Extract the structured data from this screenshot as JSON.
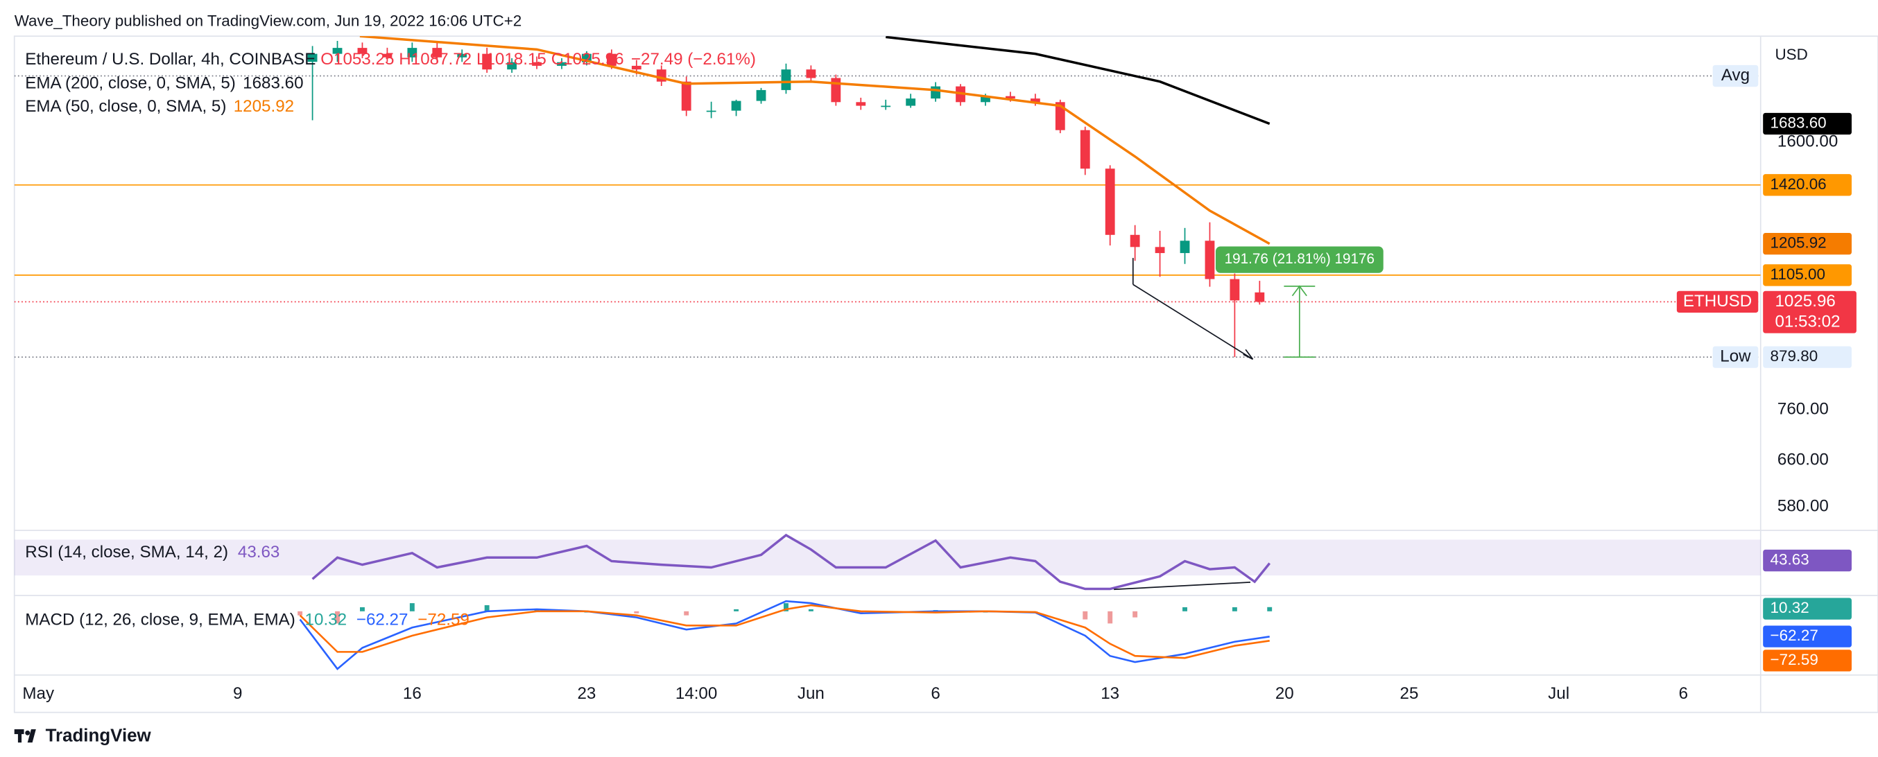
{
  "header": {
    "text": "Wave_Theory published on TradingView.com, Jun 19, 2022 16:06 UTC+2"
  },
  "chart_data": [
    {
      "type": "candlestick",
      "title": "Ethereum / U.S. Dollar, 4h, COINBASE",
      "ohlc_labels": [
        "O1053.25",
        "H1087.72",
        "L1018.15",
        "C1025.96"
      ],
      "change_label": "−27.49 (−2.61%)",
      "currency": "USD",
      "x": [
        11,
        12,
        13,
        14,
        15,
        16,
        17,
        18,
        19,
        20,
        21,
        22,
        23,
        24,
        25,
        26,
        27,
        28,
        29,
        30,
        31,
        32,
        33,
        34,
        35,
        36,
        37,
        38,
        39,
        40,
        41,
        42,
        43,
        44,
        45,
        46,
        47,
        48,
        49
      ],
      "open": [
        2000,
        2045,
        2079,
        2045,
        2025,
        2079,
        2025,
        2045,
        1958,
        1998,
        1978,
        1998,
        2045,
        1978,
        1958,
        1893,
        1746,
        1746,
        1794,
        1849,
        1958,
        1912,
        1788,
        1770,
        1770,
        1806,
        1868,
        1788,
        1818,
        1806,
        1788,
        1654,
        1486,
        1236,
        1195,
        1175,
        1216,
        1093,
        1053.25
      ],
      "high": [
        2090,
        2120,
        2110,
        2080,
        2110,
        2110,
        2070,
        2080,
        2020,
        2030,
        2020,
        2060,
        2070,
        2010,
        1980,
        1920,
        1790,
        1800,
        1860,
        1990,
        1980,
        1930,
        1810,
        1800,
        1830,
        1890,
        1880,
        1830,
        1840,
        1830,
        1800,
        1670,
        1500,
        1270,
        1250,
        1260,
        1280,
        1110,
        1087.72
      ],
      "low": [
        1700,
        2000,
        2020,
        2000,
        2000,
        2000,
        2000,
        1940,
        1940,
        1960,
        1960,
        1980,
        1960,
        1930,
        1870,
        1720,
        1710,
        1720,
        1780,
        1830,
        1890,
        1770,
        1750,
        1750,
        1760,
        1790,
        1770,
        1770,
        1790,
        1770,
        1640,
        1460,
        1200,
        1150,
        1100,
        1140,
        1070,
        879.8,
        1018.15
      ],
      "close": [
        2045,
        2079,
        2045,
        2025,
        2079,
        2025,
        2045,
        1958,
        1998,
        1978,
        1998,
        2045,
        1978,
        1958,
        1893,
        1746,
        1746,
        1794,
        1849,
        1958,
        1912,
        1788,
        1770,
        1770,
        1806,
        1868,
        1788,
        1818,
        1806,
        1788,
        1654,
        1486,
        1236,
        1195,
        1175,
        1216,
        1093,
        1030,
        1025.96
      ],
      "up_color": "#089981",
      "down_color": "#f23645",
      "xlim": [
        -0.96,
        69.1
      ],
      "xticks": [
        {
          "value": 0,
          "label": "May"
        },
        {
          "value": 8,
          "label": "9"
        },
        {
          "value": 15,
          "label": "16"
        },
        {
          "value": 22,
          "label": "23"
        },
        {
          "value": 26.4,
          "label": "14:00"
        },
        {
          "value": 31,
          "label": "Jun"
        },
        {
          "value": 36,
          "label": "6"
        },
        {
          "value": 43,
          "label": "13"
        },
        {
          "value": 50,
          "label": "20"
        },
        {
          "value": 55,
          "label": "25"
        },
        {
          "value": 61,
          "label": "Jul"
        },
        {
          "value": 66,
          "label": "6"
        }
      ],
      "ylim": [
        547,
        2148
      ],
      "log_scale": true,
      "yticks": [
        {
          "value": 1600,
          "label": "1600.00"
        },
        {
          "value": 760,
          "label": "760.00"
        },
        {
          "value": 660,
          "label": "660.00"
        },
        {
          "value": 580,
          "label": "580.00"
        }
      ],
      "series": [
        {
          "name": "EMA (200, close, 0, SMA, 5)",
          "color": "#000000",
          "x": [
            34,
            40,
            45,
            49.4
          ],
          "values": [
            2143,
            2045,
            1893,
            1683.6
          ],
          "value_labels": [
            null,
            null,
            null,
            "1683.60"
          ]
        },
        {
          "name": "EMA (50, close, 0, SMA, 5)",
          "color": "#f57c00",
          "x": [
            12.9,
            20,
            26,
            31,
            36,
            41,
            44,
            47,
            49.4
          ],
          "values": [
            2148,
            2070,
            1882,
            1893,
            1849,
            1770,
            1537,
            1322,
            1205.92
          ]
        }
      ],
      "levels": [
        {
          "value": 1420.06,
          "label": "1420.06",
          "color": "#ff9800"
        },
        {
          "value": 1105,
          "label": "1105.00",
          "color": "#ff9800"
        },
        {
          "value": 879.8,
          "label": "879.80",
          "name": "Low",
          "color": "#787b86"
        },
        {
          "value": 1923,
          "name": "Avg",
          "color": "#787b86"
        }
      ],
      "last_price": {
        "value": 1025.96,
        "label": "1025.96",
        "symbol": "ETHUSD",
        "countdown": "01:53:02",
        "color": "#f23645"
      },
      "measure": {
        "x": 50.6,
        "from": 879.8,
        "change": 191.76,
        "label": "191.76 (21.81%) 19176",
        "color": "#4caf50"
      }
    },
    {
      "type": "line",
      "title": "RSI (14, close, SMA, 14, 2)",
      "color": "#7e57c2",
      "x": [
        11,
        12,
        13,
        15,
        16,
        18,
        20,
        22,
        23,
        25,
        27,
        29,
        30,
        31,
        32,
        34,
        36,
        37,
        39,
        40,
        41,
        42,
        43,
        44,
        45,
        46,
        47,
        48,
        48.8,
        49.4
      ],
      "values": [
        26,
        50,
        42,
        55,
        39,
        50,
        50,
        63,
        46,
        42,
        39,
        53,
        75,
        59,
        39,
        39,
        69,
        39,
        50,
        46,
        23,
        15,
        15,
        22,
        29,
        46,
        37,
        39,
        23,
        43.63
      ],
      "ylim": [
        9,
        79
      ],
      "band": [
        30,
        70
      ]
    },
    {
      "type": "macd",
      "title": "MACD (12, 26, close, 9, EMA, EMA)",
      "x": [
        10.5,
        12,
        13,
        15,
        18,
        20,
        22,
        24,
        26,
        28,
        30,
        31,
        33,
        36,
        38,
        40,
        42,
        43,
        44,
        46,
        48,
        49.4
      ],
      "histogram": {
        "values": [
          -10,
          -30,
          10,
          20,
          15,
          5,
          0,
          -5,
          -10,
          5,
          20,
          5,
          -5,
          3,
          0,
          -1,
          -20,
          -30,
          -15,
          10,
          10,
          10.32
        ],
        "color": "#26a69a",
        "negative_color": "#ef9a9a"
      },
      "series": [
        {
          "color": "#2962ff",
          "values": [
            -20,
            -142,
            -90,
            -40,
            0,
            5,
            0,
            -15,
            -45,
            -30,
            25,
            20,
            -5,
            0,
            0,
            -3,
            -60,
            -110,
            -125,
            -105,
            -75,
            -62.27
          ],
          "value_labels": [
            null,
            null,
            null,
            null,
            null,
            null,
            null,
            null,
            null,
            null,
            null,
            null,
            null,
            null,
            null,
            null,
            null,
            null,
            null,
            null,
            null,
            "−62.27"
          ]
        },
        {
          "color": "#ff6d00",
          "values": [
            -10,
            -100,
            -100,
            -60,
            -15,
            0,
            0,
            -10,
            -35,
            -35,
            5,
            15,
            0,
            -3,
            0,
            -2,
            -40,
            -80,
            -110,
            -115,
            -85,
            -72.59
          ],
          "value_labels": [
            null,
            null,
            null,
            null,
            null,
            null,
            null,
            null,
            null,
            null,
            null,
            null,
            null,
            null,
            null,
            null,
            null,
            null,
            null,
            null,
            null,
            "−72.59"
          ]
        }
      ],
      "ylim": [
        -157,
        36
      ]
    }
  ],
  "footer": {
    "brand": "TradingView"
  }
}
